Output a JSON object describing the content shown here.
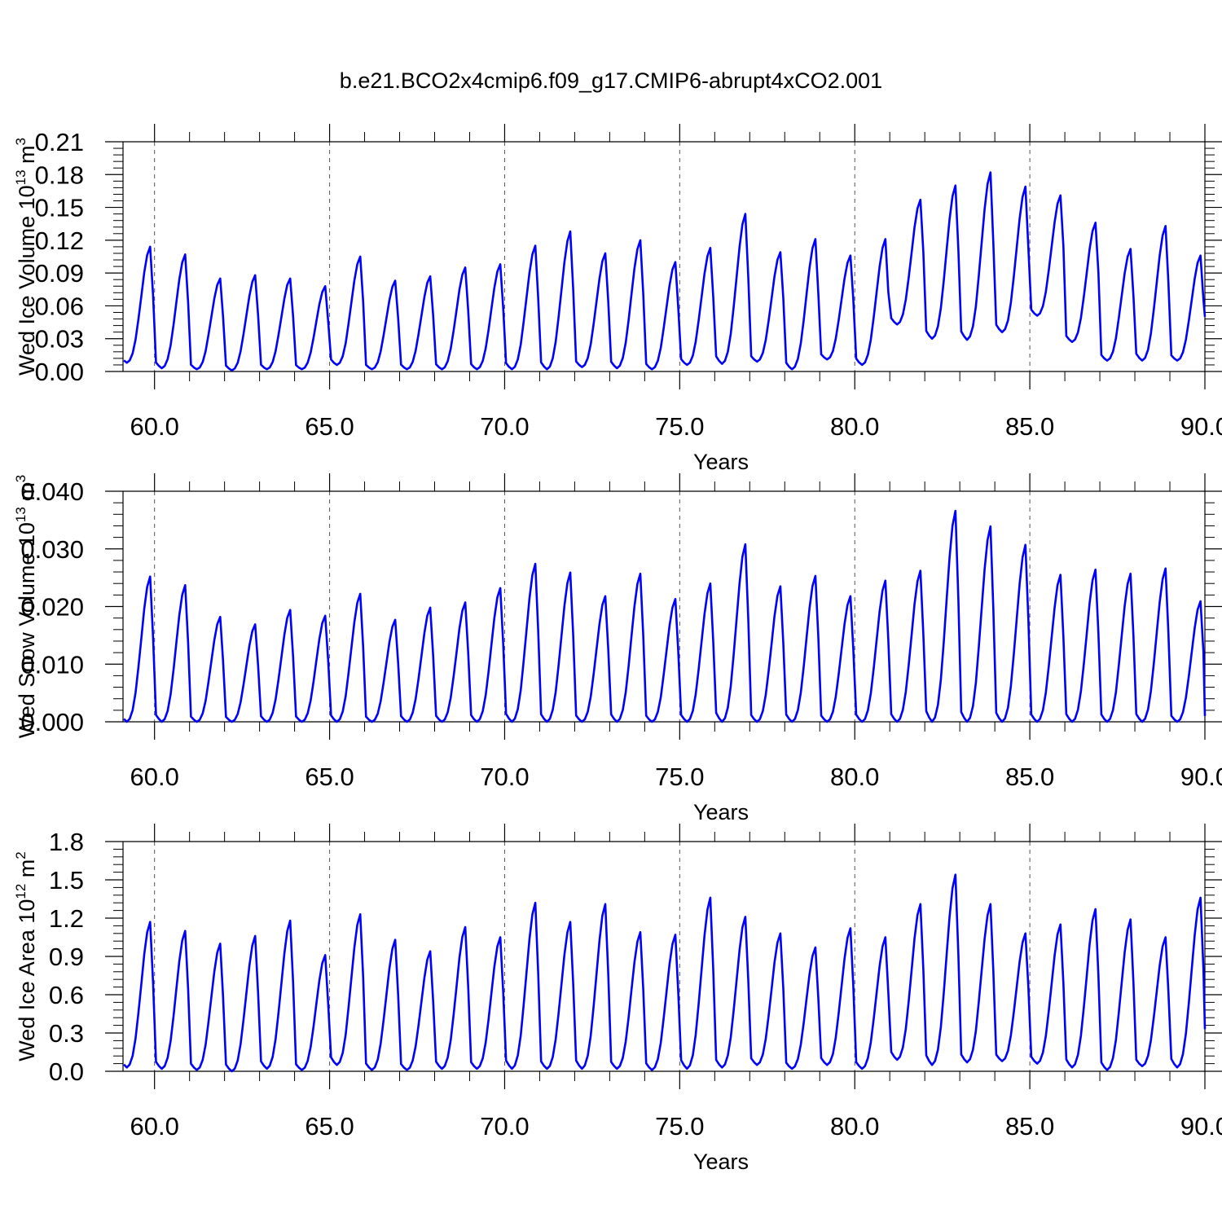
{
  "title": "b.e21.BCO2x4cmip6.f09_g17.CMIP6-abrupt4xCO2.001",
  "line_color": "#0000ff",
  "chart_data": [
    {
      "type": "line",
      "title": "b.e21.BCO2x4cmip6.f09_g17.CMIP6-abrupt4xCO2.001",
      "xlabel": "Years",
      "ylabel": "Wed Ice Volume 10",
      "ylabel_exp": "13",
      "ylabel_unit": " m",
      "ylabel_unit_exp": "3",
      "xlim": [
        59.1,
        90.0
      ],
      "ylim": [
        0.0,
        0.21
      ],
      "xticks": [
        "60.0",
        "65.0",
        "70.0",
        "75.0",
        "80.0",
        "85.0",
        "90.0"
      ],
      "xtick_values": [
        60,
        65,
        70,
        75,
        80,
        85,
        90
      ],
      "yticks": [
        "0.00",
        "0.03",
        "0.06",
        "0.09",
        "0.12",
        "0.15",
        "0.18",
        "0.21"
      ],
      "ytick_values": [
        0,
        0.03,
        0.06,
        0.09,
        0.12,
        0.15,
        0.18,
        0.21
      ],
      "series": [
        {
          "color": "#0000ff",
          "years": [
            59,
            60,
            61,
            62,
            63,
            64,
            65,
            66,
            67,
            68,
            69,
            70,
            71,
            72,
            73,
            74,
            75,
            76,
            77,
            78,
            79,
            80,
            81,
            82,
            83,
            84,
            85,
            86,
            87,
            88,
            89
          ],
          "annual_min": [
            0.008,
            0.003,
            0.002,
            0.001,
            0.002,
            0.002,
            0.006,
            0.002,
            0.002,
            0.002,
            0.002,
            0.002,
            0.002,
            0.004,
            0.003,
            0.002,
            0.006,
            0.007,
            0.009,
            0.002,
            0.011,
            0.006,
            0.043,
            0.03,
            0.029,
            0.036,
            0.051,
            0.027,
            0.01,
            0.01,
            0.01
          ],
          "annual_max": [
            0.114,
            0.107,
            0.085,
            0.088,
            0.085,
            0.078,
            0.105,
            0.083,
            0.087,
            0.095,
            0.098,
            0.115,
            0.128,
            0.108,
            0.12,
            0.1,
            0.113,
            0.144,
            0.109,
            0.121,
            0.106,
            0.121,
            0.157,
            0.17,
            0.182,
            0.169,
            0.161,
            0.136,
            0.112,
            0.133,
            0.106
          ],
          "start_value": 0.022,
          "end_value": 0.05
        }
      ]
    },
    {
      "type": "line",
      "xlabel": "Years",
      "ylabel": "Wed Snow Volume 10",
      "ylabel_exp": "13",
      "ylabel_unit": " m",
      "ylabel_unit_exp": "3",
      "xlim": [
        59.1,
        90.0
      ],
      "ylim": [
        0.0,
        0.04
      ],
      "xticks": [
        "60.0",
        "65.0",
        "70.0",
        "75.0",
        "80.0",
        "85.0",
        "90.0"
      ],
      "xtick_values": [
        60,
        65,
        70,
        75,
        80,
        85,
        90
      ],
      "yticks": [
        "0.000",
        "0.010",
        "0.020",
        "0.030",
        "0.040"
      ],
      "ytick_values": [
        0,
        0.01,
        0.02,
        0.03,
        0.04
      ],
      "series": [
        {
          "color": "#0000ff",
          "years": [
            59,
            60,
            61,
            62,
            63,
            64,
            65,
            66,
            67,
            68,
            69,
            70,
            71,
            72,
            73,
            74,
            75,
            76,
            77,
            78,
            79,
            80,
            81,
            82,
            83,
            84,
            85,
            86,
            87,
            88,
            89
          ],
          "annual_min": [
            0.0,
            0.0,
            0.0,
            0.0,
            0.0,
            0.0,
            0.0,
            0.0,
            0.0,
            0.0,
            0.0,
            0.0,
            0.0,
            0.0,
            0.0,
            0.0,
            0.0,
            0.0,
            0.0,
            0.0,
            0.0,
            0.0,
            0.0,
            0.0,
            0.0,
            0.0,
            0.0,
            0.0,
            0.0,
            0.0,
            0.0
          ],
          "annual_max": [
            0.0252,
            0.0237,
            0.0182,
            0.0169,
            0.0194,
            0.0184,
            0.0222,
            0.0177,
            0.0198,
            0.0207,
            0.0232,
            0.0274,
            0.0259,
            0.0218,
            0.0257,
            0.0213,
            0.024,
            0.0308,
            0.0235,
            0.0253,
            0.0218,
            0.0245,
            0.0262,
            0.0366,
            0.0339,
            0.0307,
            0.0255,
            0.0264,
            0.0257,
            0.0266,
            0.0209
          ],
          "start_value": 0.0,
          "end_value": 0.001
        }
      ]
    },
    {
      "type": "line",
      "xlabel": "Years",
      "ylabel": "Wed Ice Area 10",
      "ylabel_exp": "12",
      "ylabel_unit": " m",
      "ylabel_unit_exp": "2",
      "xlim": [
        59.1,
        90.0
      ],
      "ylim": [
        0.0,
        1.8
      ],
      "xticks": [
        "60.0",
        "65.0",
        "70.0",
        "75.0",
        "80.0",
        "85.0",
        "90.0"
      ],
      "xtick_values": [
        60,
        65,
        70,
        75,
        80,
        85,
        90
      ],
      "yticks": [
        "0.0",
        "0.3",
        "0.6",
        "0.9",
        "1.2",
        "1.5",
        "1.8"
      ],
      "ytick_values": [
        0,
        0.3,
        0.6,
        0.9,
        1.2,
        1.5,
        1.8
      ],
      "series": [
        {
          "color": "#0000ff",
          "years": [
            59,
            60,
            61,
            62,
            63,
            64,
            65,
            66,
            67,
            68,
            69,
            70,
            71,
            72,
            73,
            74,
            75,
            76,
            77,
            78,
            79,
            80,
            81,
            82,
            83,
            84,
            85,
            86,
            87,
            88,
            89
          ],
          "annual_min": [
            0.03,
            0.02,
            0.01,
            0.0,
            0.02,
            0.01,
            0.05,
            0.01,
            0.01,
            0.02,
            0.02,
            0.02,
            0.02,
            0.02,
            0.02,
            0.01,
            0.02,
            0.03,
            0.05,
            0.02,
            0.05,
            0.02,
            0.09,
            0.05,
            0.07,
            0.08,
            0.06,
            0.03,
            0.01,
            0.04,
            0.03
          ],
          "annual_max": [
            1.17,
            1.1,
            1.0,
            1.06,
            1.18,
            0.91,
            1.23,
            1.03,
            0.94,
            1.13,
            1.05,
            1.32,
            1.17,
            1.31,
            1.09,
            1.07,
            1.36,
            1.21,
            1.08,
            0.97,
            1.12,
            1.05,
            1.31,
            1.54,
            1.31,
            1.08,
            1.15,
            1.27,
            1.19,
            1.05,
            1.36
          ],
          "start_value": 0.1,
          "end_value": 0.33
        }
      ]
    }
  ]
}
